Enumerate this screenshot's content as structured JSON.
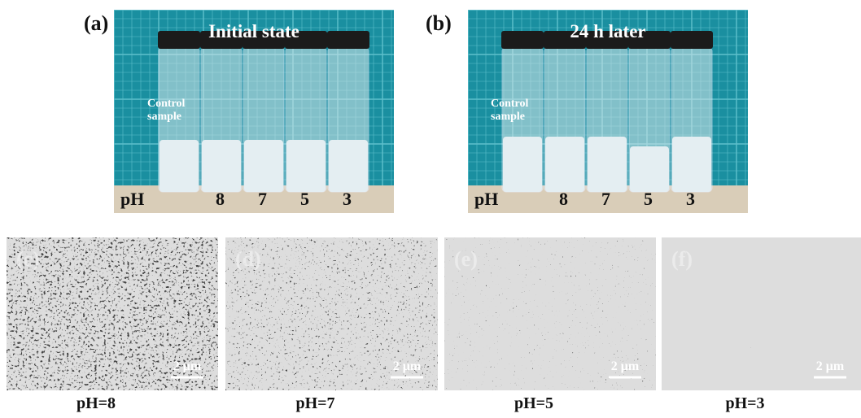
{
  "photos": [
    {
      "label": "(a)",
      "title": "Initial state",
      "control_label": "Control sample",
      "ph_label": "pH",
      "ph_values": [
        "8",
        "7",
        "5",
        "3"
      ]
    },
    {
      "label": "(b)",
      "title": "24 h later",
      "control_label": "Control sample",
      "ph_label": "pH",
      "ph_values": [
        "8",
        "7",
        "5",
        "3"
      ]
    }
  ],
  "sem": [
    {
      "label": "(c)",
      "scale": "2 μm",
      "caption": "pH=8"
    },
    {
      "label": "(d)",
      "scale": "2 μm",
      "caption": "pH=7"
    },
    {
      "label": "(e)",
      "scale": "2 μm",
      "caption": "pH=5"
    },
    {
      "label": "(f)",
      "scale": "2 μm",
      "caption": "pH=3"
    }
  ]
}
